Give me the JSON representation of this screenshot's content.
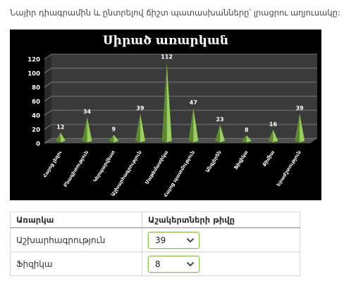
{
  "instruction": "Նայիր դիագրամին և ընտրելով ճիշտ պատասխանները՝ լրացրու աղյուսակը:",
  "chart_data": {
    "type": "bar",
    "title": "Սիրած առարկան",
    "categories": [
      "Հայոց լեզու",
      "Բնագիտություն",
      "Կերպարվեստ",
      "Աշխարհագրություն",
      "Մաթեմատիկա",
      "Հայոց պատմություն",
      "Անգլերեն",
      "Ֆիզիկա",
      "Քիմիա",
      "Երաժշտություն"
    ],
    "values": [
      12,
      34,
      9,
      39,
      112,
      47,
      23,
      8,
      16,
      39
    ],
    "ylim": [
      0,
      120
    ],
    "yticks": [
      0,
      20,
      40,
      60,
      80,
      100,
      120
    ],
    "grid": true,
    "colors": {
      "background": "#000000",
      "bar": "#9bd060",
      "bar_shadow": "#5e8a2f",
      "text": "#ffffff"
    }
  },
  "table": {
    "headers": [
      "Առարկա",
      "Աշակերտների թիվը"
    ],
    "rows": [
      {
        "subject": "Աշխարհագրություն",
        "selected": "39"
      },
      {
        "subject": "Ֆիզիկա",
        "selected": "8"
      }
    ]
  }
}
